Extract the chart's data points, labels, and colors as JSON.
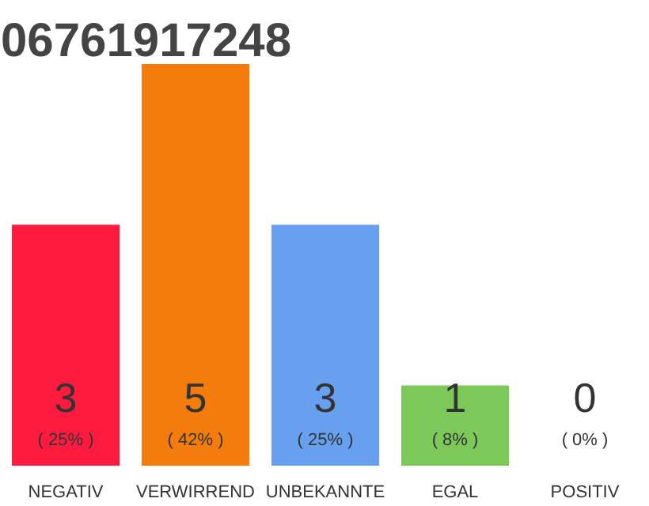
{
  "chart_data": {
    "type": "bar",
    "title": "06761917248",
    "categories": [
      "NEGATIV",
      "VERWIRREND",
      "UNBEKANNTE",
      "EGAL",
      "POSITIV"
    ],
    "values": [
      3,
      5,
      3,
      1,
      0
    ],
    "colors": [
      "#ff1a40",
      "#f47c0c",
      "#66a0ee",
      "#7cc95a",
      "#dddddd"
    ],
    "value_labels": [
      "3",
      "5",
      "3",
      "1",
      "0"
    ],
    "annotations": [
      {
        "text": "( 25% )",
        "x": "NEGATIV",
        "y": 0
      },
      {
        "text": "( 42% )",
        "x": "VERWIRREND",
        "y": 0
      },
      {
        "text": "( 25% )",
        "x": "UNBEKANNTE",
        "y": 0
      },
      {
        "text": "( 8% )",
        "x": "EGAL",
        "y": 0
      },
      {
        "text": "( 0% )",
        "x": "POSITIV",
        "y": 0
      }
    ],
    "grid": false
  }
}
